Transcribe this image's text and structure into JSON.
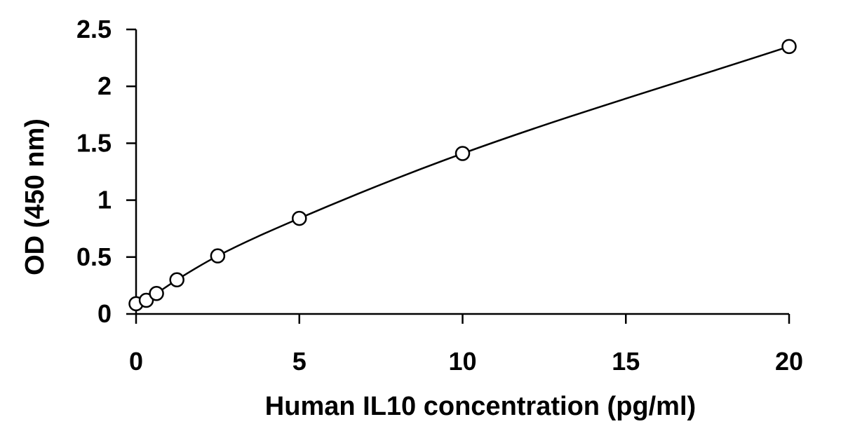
{
  "chart_data": {
    "type": "scatter",
    "title": "",
    "xlabel": "Human IL10 concentration (pg/ml)",
    "ylabel": "OD (450 nm)",
    "xlim": [
      0,
      20
    ],
    "ylim": [
      0,
      2.5
    ],
    "x_ticks": [
      0,
      5,
      10,
      15,
      20
    ],
    "x_tick_labels": [
      "0",
      "5",
      "10",
      "15",
      "20"
    ],
    "y_ticks": [
      0,
      0.5,
      1,
      1.5,
      2,
      2.5
    ],
    "y_tick_labels": [
      "0",
      "0.5",
      "1",
      "1.5",
      "2",
      "2.5"
    ],
    "grid": false,
    "legend": "none",
    "series": [
      {
        "marker": "open-circle",
        "fit": "smooth-curve",
        "x": [
          0,
          0.313,
          0.625,
          1.25,
          2.5,
          5,
          10,
          20
        ],
        "y": [
          0.09,
          0.12,
          0.18,
          0.3,
          0.51,
          0.84,
          1.41,
          2.35
        ]
      }
    ],
    "colors": {
      "axis": "#000000",
      "marker_stroke": "#000000",
      "marker_fill": "#ffffff",
      "curve": "#000000"
    }
  }
}
